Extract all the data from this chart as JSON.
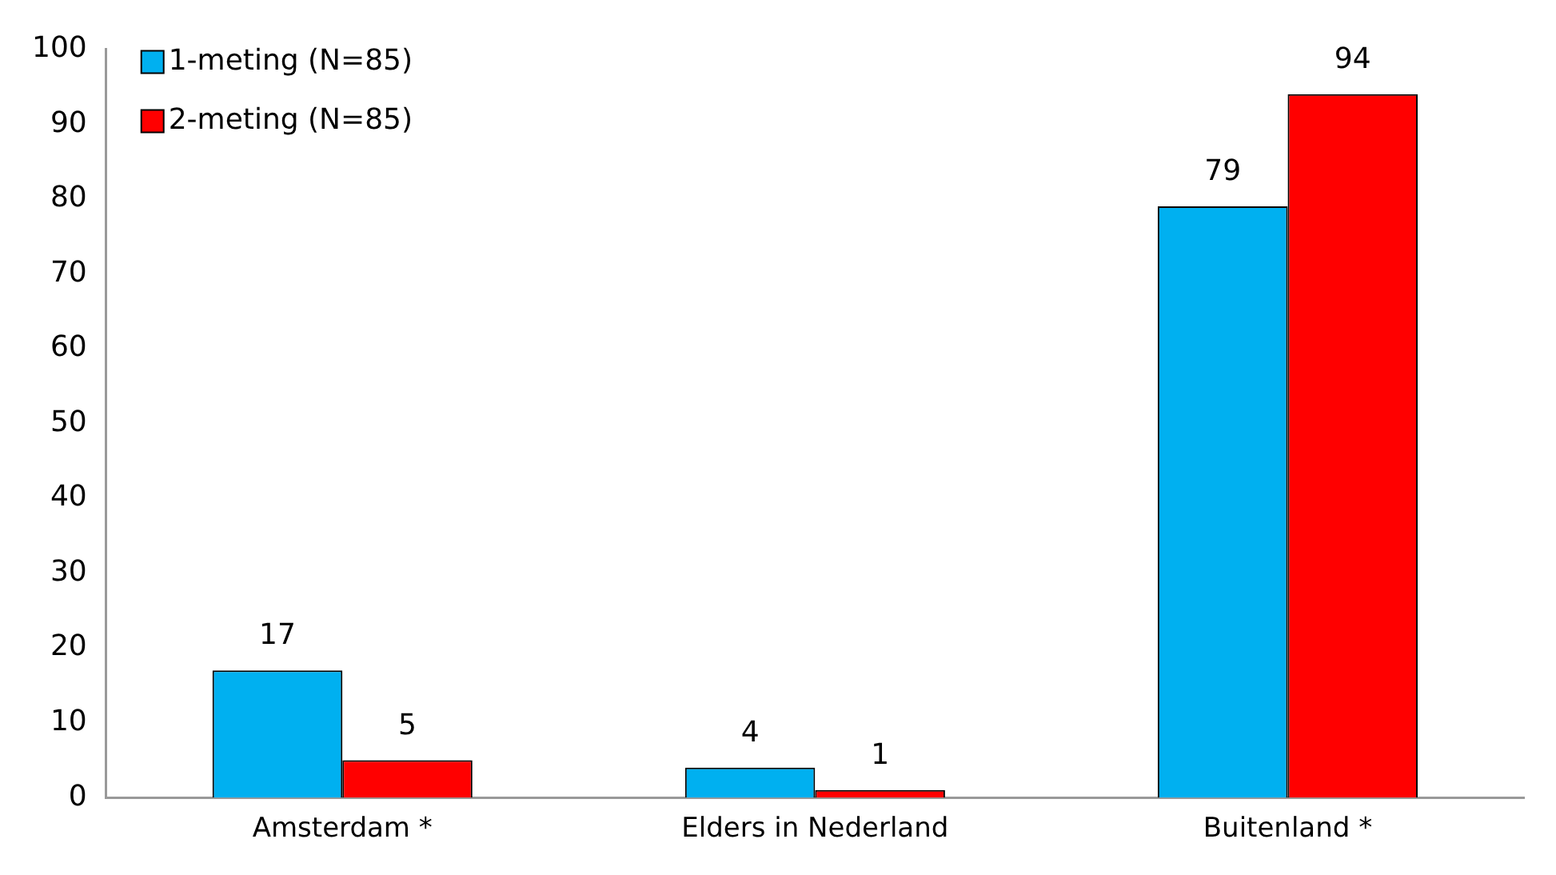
{
  "chart_data": {
    "type": "bar",
    "categories": [
      "Amsterdam *",
      "Elders in Nederland",
      "Buitenland *"
    ],
    "series": [
      {
        "name": "1-meting (N=85)",
        "color": "#00b0f0",
        "values": [
          17,
          4,
          79
        ]
      },
      {
        "name": "2-meting (N=85)",
        "color": "#ff0000",
        "values": [
          5,
          1,
          94
        ]
      }
    ],
    "ylim": [
      0,
      100
    ],
    "yticks": [
      0,
      10,
      20,
      30,
      40,
      50,
      60,
      70,
      80,
      90,
      100
    ],
    "grid": false,
    "legend": "top left",
    "data_labels": true
  }
}
